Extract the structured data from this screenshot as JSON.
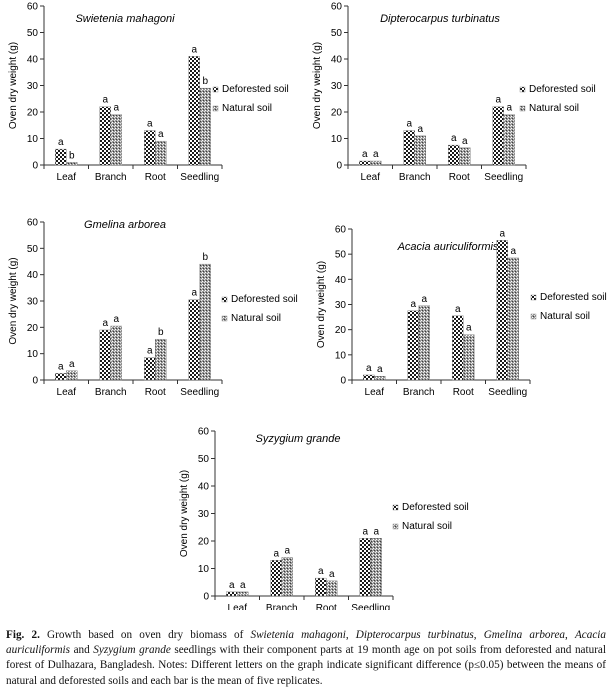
{
  "chart_data": [
    {
      "type": "bar",
      "title": "Swietenia mahagoni",
      "ylabel": "Oven dry weight (g)",
      "ylim": [
        0,
        60
      ],
      "yticks": [
        0,
        10,
        20,
        30,
        40,
        50,
        60
      ],
      "categories": [
        "Leaf",
        "Branch",
        "Root",
        "Seedling"
      ],
      "series": [
        {
          "name": "Deforested soil",
          "values": [
            6,
            22,
            13,
            41
          ],
          "letters": [
            "a",
            "a",
            "a",
            "a"
          ]
        },
        {
          "name": "Natural soil",
          "values": [
            1,
            19,
            9,
            29
          ],
          "letters": [
            "b",
            "a",
            "a",
            "b"
          ]
        }
      ],
      "legend": "right"
    },
    {
      "type": "bar",
      "title": "Dipterocarpus turbinatus",
      "ylabel": "Oven dry weight (g)",
      "ylim": [
        0,
        60
      ],
      "yticks": [
        0,
        10,
        20,
        30,
        40,
        50,
        60
      ],
      "categories": [
        "Leaf",
        "Branch",
        "Root",
        "Seedling"
      ],
      "series": [
        {
          "name": "Deforested soil",
          "values": [
            1.5,
            13,
            7.5,
            22
          ],
          "letters": [
            "a",
            "a",
            "a",
            "a"
          ]
        },
        {
          "name": "Natural soil",
          "values": [
            1.5,
            11,
            6.5,
            19
          ],
          "letters": [
            "a",
            "a",
            "a",
            "a"
          ]
        }
      ],
      "legend": "right"
    },
    {
      "type": "bar",
      "title": "Gmelina arborea",
      "ylabel": "Oven dry weight (g)",
      "ylim": [
        0,
        60
      ],
      "yticks": [
        0,
        10,
        20,
        30,
        40,
        50,
        60
      ],
      "categories": [
        "Leaf",
        "Branch",
        "Root",
        "Seedling"
      ],
      "series": [
        {
          "name": "Deforested soil",
          "values": [
            2.5,
            19,
            8.5,
            30.5
          ],
          "letters": [
            "a",
            "a",
            "a",
            "a"
          ]
        },
        {
          "name": "Natural soil",
          "values": [
            3.5,
            20.5,
            15.5,
            44
          ],
          "letters": [
            "a",
            "a",
            "b",
            "b"
          ]
        }
      ],
      "legend": "right"
    },
    {
      "type": "bar",
      "title": "Acacia auriculiformis",
      "ylabel": "Oven dry weight (g)",
      "ylim": [
        0,
        60
      ],
      "yticks": [
        0,
        10,
        20,
        30,
        40,
        50,
        60
      ],
      "categories": [
        "Leaf",
        "Branch",
        "Root",
        "Seedling"
      ],
      "series": [
        {
          "name": "Deforested soil",
          "values": [
            2,
            27.5,
            25.5,
            55.5
          ],
          "letters": [
            "a",
            "a",
            "a",
            "a"
          ]
        },
        {
          "name": "Natural soil",
          "values": [
            1.5,
            29.5,
            18,
            48.5
          ],
          "letters": [
            "a",
            "a",
            "a",
            "a"
          ]
        }
      ],
      "legend": "right"
    },
    {
      "type": "bar",
      "title": "Syzygium grande",
      "ylabel": "Oven dry weight (g)",
      "ylim": [
        0,
        60
      ],
      "yticks": [
        0,
        10,
        20,
        30,
        40,
        50,
        60
      ],
      "categories": [
        "Leaf",
        "Branch",
        "Root",
        "Seedling"
      ],
      "series": [
        {
          "name": "Deforested soil",
          "values": [
            1.5,
            13,
            6.5,
            21
          ],
          "letters": [
            "a",
            "a",
            "a",
            "a"
          ]
        },
        {
          "name": "Natural soil",
          "values": [
            1.5,
            14,
            5.5,
            21
          ],
          "letters": [
            "a",
            "a",
            "a",
            "a"
          ]
        }
      ],
      "legend": "right"
    }
  ],
  "caption": {
    "label": "Fig. 2.",
    "segments": [
      {
        "t": " Growth based on oven dry biomass of ",
        "i": false
      },
      {
        "t": "Swietenia mahagoni",
        "i": true
      },
      {
        "t": ", ",
        "i": false
      },
      {
        "t": "Dipterocarpus turbinatus",
        "i": true
      },
      {
        "t": ", ",
        "i": false
      },
      {
        "t": "Gmelina arborea",
        "i": true
      },
      {
        "t": ", ",
        "i": false
      },
      {
        "t": "Acacia auriculiformis",
        "i": true
      },
      {
        "t": " and ",
        "i": false
      },
      {
        "t": "Syzygium grande",
        "i": true
      },
      {
        "t": " seedlings with their component parts at 19 month age on pot soils from deforested and natural forest of Dulhazara, Bangladesh. Notes: Different letters on the graph indicate significant difference (p≤0.05) between the means of natural and deforested soils and each bar is the mean of five replicates.",
        "i": false
      }
    ]
  },
  "colors": {
    "deforested_fill": "#1a1a1a",
    "natural_fill": "#555555",
    "axis": "#333333"
  }
}
